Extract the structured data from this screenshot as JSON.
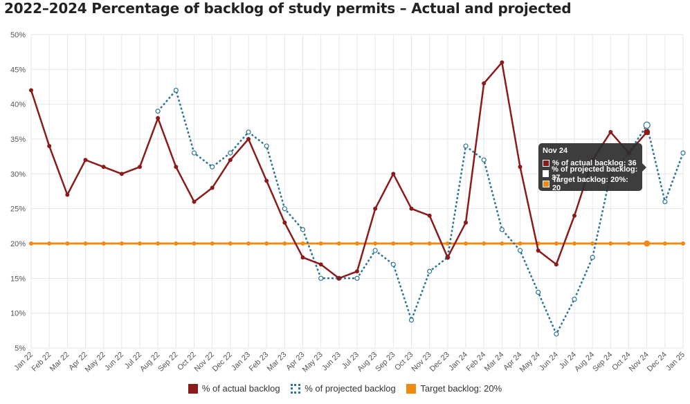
{
  "title": "2022–2024 Percentage of backlog of study permits – Actual and projected",
  "colors": {
    "actual": "#8b1a1a",
    "projected": "#2a7497",
    "target": "#f08a12",
    "grid": "#e6e6e6"
  },
  "chart_data": {
    "type": "line",
    "title": "2022–2024 Percentage of backlog of study permits – Actual and projected",
    "xlabel": "",
    "ylabel": "",
    "ylim": [
      5,
      50
    ],
    "yticks": [
      "5%",
      "10%",
      "15%",
      "20%",
      "25%",
      "30%",
      "35%",
      "40%",
      "45%",
      "50%"
    ],
    "grid": true,
    "legend_position": "bottom",
    "categories": [
      "Jan 22",
      "Feb 22",
      "Mar 22",
      "Apr 22",
      "May 22",
      "Jun 22",
      "Jul 22",
      "Aug 22",
      "Sep 22",
      "Oct 22",
      "Nov 22",
      "Dec 22",
      "Jan 23",
      "Feb 23",
      "Mar 23",
      "Apr 23",
      "May 23",
      "Jun 23",
      "Jul 23",
      "Aug 23",
      "Sep 23",
      "Oct 23",
      "Nov 23",
      "Dec 23",
      "Jan 24",
      "Feb 24",
      "Mar 24",
      "Apr 24",
      "May 24",
      "Jun 24",
      "Jul 24",
      "Aug 24",
      "Sep 24",
      "Oct 24",
      "Nov 24",
      "Dec 24",
      "Jan 25"
    ],
    "series": [
      {
        "name": "% of actual backlog",
        "style": "solid",
        "values": [
          42,
          34,
          27,
          32,
          31,
          30,
          31,
          38,
          31,
          26,
          28,
          32,
          35,
          29,
          23,
          18,
          17,
          15,
          16,
          25,
          30,
          25,
          24,
          18,
          23,
          43,
          46,
          31,
          19,
          17,
          24,
          32,
          36,
          33,
          36,
          null,
          null
        ]
      },
      {
        "name": "% of projected backlog",
        "style": "dotted",
        "values": [
          null,
          null,
          null,
          null,
          null,
          null,
          null,
          39,
          42,
          33,
          31,
          33,
          36,
          34,
          25,
          22,
          15,
          15,
          15,
          19,
          17,
          9,
          16,
          18,
          34,
          32,
          22,
          19,
          13,
          7,
          12,
          18,
          30,
          33,
          37,
          26,
          33
        ]
      },
      {
        "name": "Target backlog: 20%",
        "style": "solid",
        "values": [
          20,
          20,
          20,
          20,
          20,
          20,
          20,
          20,
          20,
          20,
          20,
          20,
          20,
          20,
          20,
          20,
          20,
          20,
          20,
          20,
          20,
          20,
          20,
          20,
          20,
          20,
          20,
          20,
          20,
          20,
          20,
          20,
          20,
          20,
          20,
          20,
          20
        ]
      }
    ],
    "tooltip": {
      "title": "Nov 24",
      "rows": [
        {
          "label": "% of actual backlog: 36"
        },
        {
          "label": "% of projected backlog: 37"
        },
        {
          "label": "Target backlog: 20%: 20"
        }
      ]
    }
  }
}
